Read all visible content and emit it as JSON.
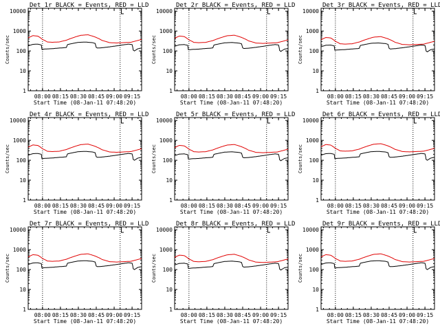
{
  "colors": {
    "events": "#000000",
    "lld": "#e00000",
    "axis": "#000000",
    "marker": "#000000"
  },
  "shared": {
    "ylabel": "Counts/sec",
    "xlabel": "Start Time (08-Jan-11 07:48:20)",
    "ytick_labels": [
      "1",
      "10",
      "100",
      "1000",
      "10000"
    ],
    "yscale": "log",
    "ylim": [
      1,
      14000
    ],
    "xlim_minutes": [
      0,
      95
    ],
    "xtick_minutes": [
      12,
      27,
      42,
      57,
      72,
      87
    ],
    "xtick_labels": [
      "08:00",
      "08:15",
      "08:30",
      "08:45",
      "09:00",
      "09:15"
    ],
    "vline_minutes": [
      12,
      77
    ],
    "bracket_minutes": [
      78,
      80
    ],
    "events_profile": {
      "t": [
        0,
        4,
        8,
        11,
        11.5,
        14,
        20,
        26,
        30,
        32,
        33,
        36,
        42,
        48,
        54,
        56,
        57,
        58,
        62,
        68,
        74,
        79,
        84,
        87,
        88,
        89,
        92,
        95
      ],
      "y": [
        180,
        215,
        220,
        200,
        120,
        125,
        130,
        140,
        145,
        150,
        210,
        230,
        270,
        280,
        260,
        240,
        150,
        140,
        145,
        160,
        180,
        200,
        220,
        210,
        110,
        100,
        130,
        140
      ]
    },
    "lld_profile": {
      "t": [
        0,
        4,
        8,
        12,
        16,
        20,
        26,
        32,
        38,
        44,
        50,
        56,
        62,
        68,
        74,
        80,
        86,
        90,
        95
      ],
      "y": [
        430,
        560,
        530,
        360,
        270,
        260,
        270,
        330,
        450,
        580,
        620,
        480,
        320,
        250,
        240,
        250,
        260,
        300,
        360
      ]
    }
  },
  "chart_data": [
    {
      "type": "line",
      "title": "Det 1r BLACK = Events, RED = LLD",
      "series": [
        {
          "name": "Events",
          "scale": 1.0
        },
        {
          "name": "LLD",
          "scale": 1.05
        }
      ]
    },
    {
      "type": "line",
      "title": "Det 2r BLACK = Events, RED = LLD",
      "series": [
        {
          "name": "Events",
          "scale": 0.95
        },
        {
          "name": "LLD",
          "scale": 1.0
        }
      ]
    },
    {
      "type": "line",
      "title": "Det 3r BLACK = Events, RED = LLD",
      "series": [
        {
          "name": "Events",
          "scale": 0.9
        },
        {
          "name": "LLD",
          "scale": 0.85
        }
      ]
    },
    {
      "type": "line",
      "title": "Det 4r BLACK = Events, RED = LLD",
      "series": [
        {
          "name": "Events",
          "scale": 1.0
        },
        {
          "name": "LLD",
          "scale": 1.05
        }
      ]
    },
    {
      "type": "line",
      "title": "Det 5r BLACK = Events, RED = LLD",
      "series": [
        {
          "name": "Events",
          "scale": 0.95
        },
        {
          "name": "LLD",
          "scale": 1.0
        }
      ]
    },
    {
      "type": "line",
      "title": "Det 6r BLACK = Events, RED = LLD",
      "series": [
        {
          "name": "Events",
          "scale": 1.0
        },
        {
          "name": "LLD",
          "scale": 1.1
        }
      ]
    },
    {
      "type": "line",
      "title": "Det 7r BLACK = Events, RED = LLD",
      "series": [
        {
          "name": "Events",
          "scale": 1.0
        },
        {
          "name": "LLD",
          "scale": 1.0
        }
      ]
    },
    {
      "type": "line",
      "title": "Det 8r BLACK = Events, RED = LLD",
      "series": [
        {
          "name": "Events",
          "scale": 0.95
        },
        {
          "name": "LLD",
          "scale": 0.95
        }
      ]
    },
    {
      "type": "line",
      "title": "Det 9r BLACK = Events, RED = LLD",
      "series": [
        {
          "name": "Events",
          "scale": 1.0
        },
        {
          "name": "LLD",
          "scale": 1.0
        }
      ]
    }
  ]
}
